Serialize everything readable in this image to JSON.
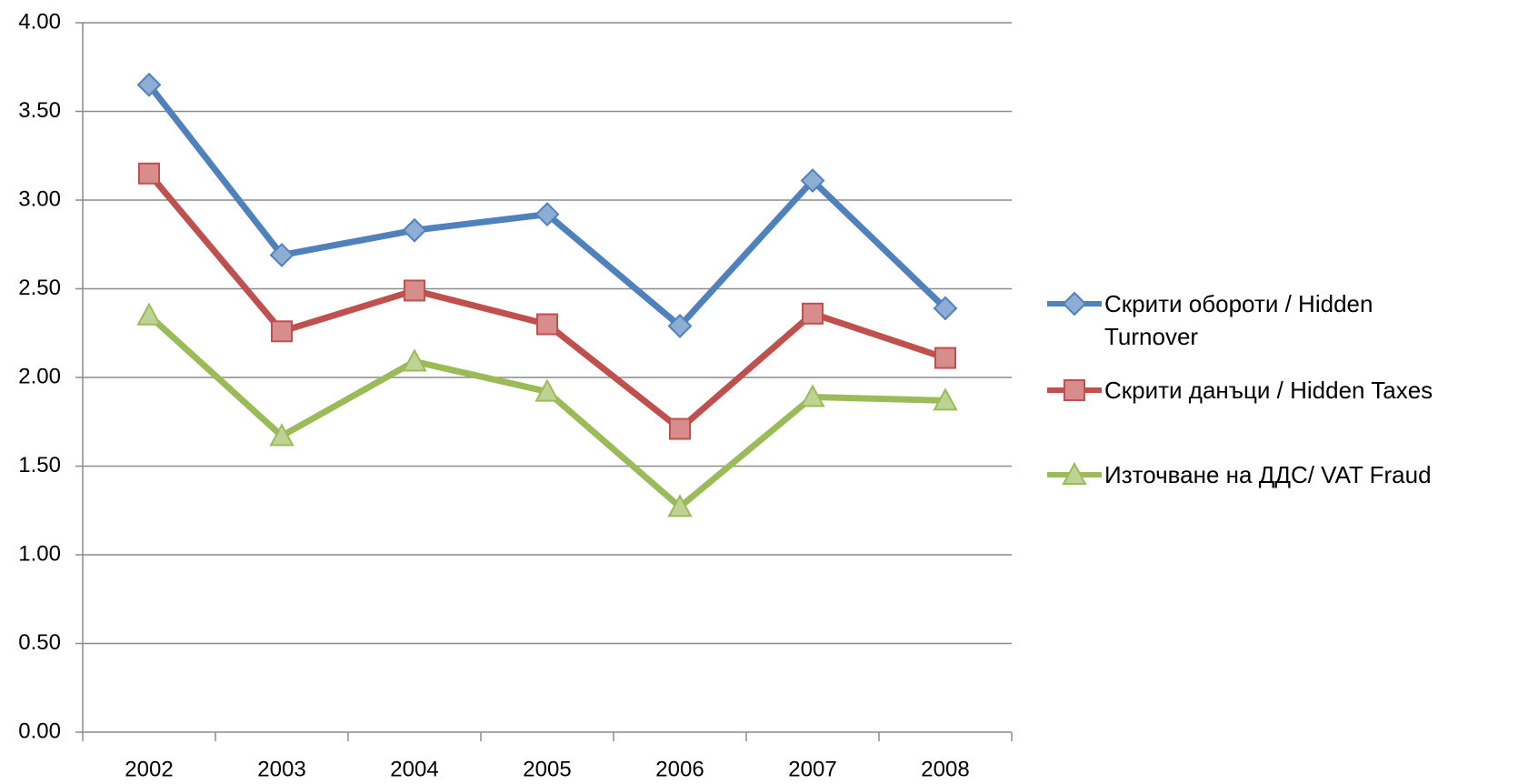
{
  "chart_data": {
    "type": "line",
    "categories": [
      "2002",
      "2003",
      "2004",
      "2005",
      "2006",
      "2007",
      "2008"
    ],
    "series": [
      {
        "name": "Скрити обороти / Hidden Turnover",
        "color": "#4f81bd",
        "marker": "diamond",
        "values": [
          3.65,
          2.69,
          2.83,
          2.92,
          2.29,
          3.11,
          2.39
        ]
      },
      {
        "name": "Скрити данъци / Hidden Taxes",
        "color": "#c0504d",
        "marker": "square",
        "values": [
          3.15,
          2.26,
          2.49,
          2.3,
          1.71,
          2.36,
          2.11
        ]
      },
      {
        "name": "Източване на ДДС/ VAT Fraud",
        "color": "#9bbb59",
        "marker": "triangle",
        "values": [
          2.35,
          1.67,
          2.09,
          1.92,
          1.27,
          1.89,
          1.87
        ]
      }
    ],
    "ylim": [
      0,
      4
    ],
    "yticks": [
      {
        "value": 0,
        "label": "0.00"
      },
      {
        "value": 0.5,
        "label": "0.50"
      },
      {
        "value": 1,
        "label": "1.00"
      },
      {
        "value": 1.5,
        "label": "1.50"
      },
      {
        "value": 2,
        "label": "2.00"
      },
      {
        "value": 2.5,
        "label": "2.50"
      },
      {
        "value": 3,
        "label": "3.00"
      },
      {
        "value": 3.5,
        "label": "3.50"
      },
      {
        "value": 4,
        "label": "4.00"
      }
    ],
    "grid": true,
    "legend": "right"
  }
}
